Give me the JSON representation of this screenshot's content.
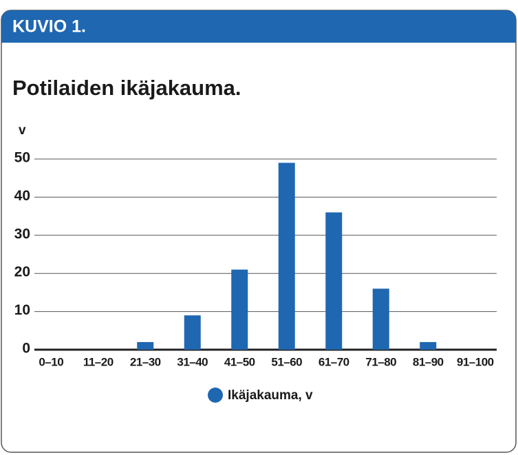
{
  "header": "KUVIO 1.",
  "chart_data": {
    "type": "bar",
    "title": "Potilaiden ikäjakauma.",
    "y_label": "v",
    "categories": [
      "0–10",
      "11–20",
      "21–30",
      "31–40",
      "41–50",
      "51–60",
      "61–70",
      "71–80",
      "81–90",
      "91–100"
    ],
    "series": [
      {
        "name": "Ikäjakauma, v",
        "color": "#1f67b1",
        "values": [
          0,
          0,
          2,
          9,
          21,
          49,
          36,
          16,
          2,
          0
        ]
      }
    ],
    "ylim": [
      0,
      50
    ],
    "yticks": [
      0,
      10,
      20,
      30,
      40,
      50
    ],
    "grid": true,
    "legend": "bottom"
  }
}
